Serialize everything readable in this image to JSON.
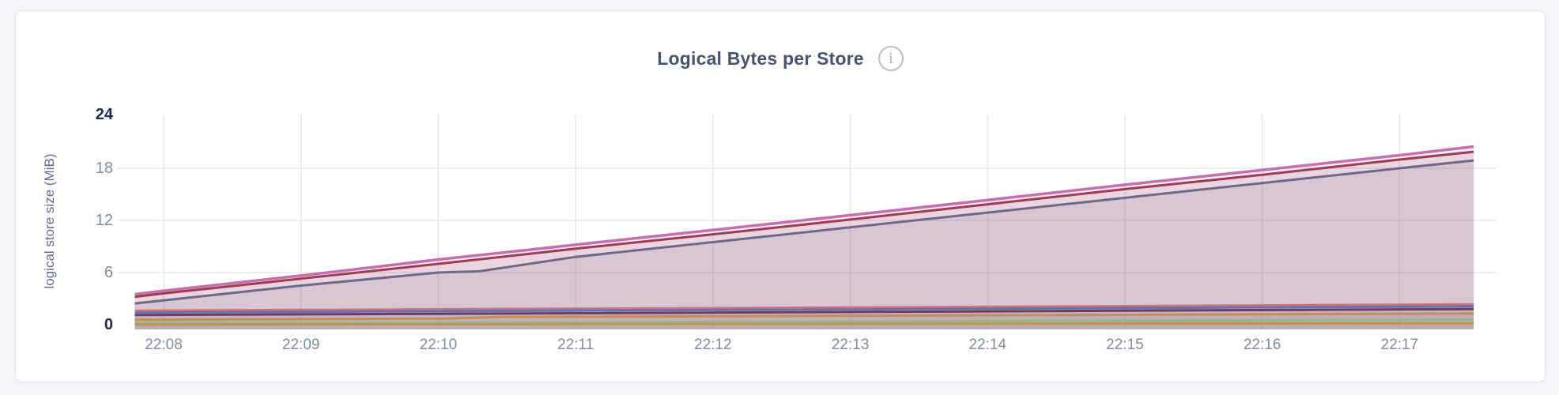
{
  "page": {
    "background": "#f3f5f9"
  },
  "header": {
    "title": "Logical Bytes per Store",
    "info_icon_glyph": "i"
  },
  "chart_data": {
    "type": "area",
    "title": "Logical Bytes per Store",
    "xlabel": "",
    "ylabel": "logical store size (MiB)",
    "ylim": [
      0,
      24
    ],
    "y_ticks": [
      0,
      6,
      12,
      18,
      24
    ],
    "y_bold_ticks": [
      0,
      24
    ],
    "x_tick_labels": [
      "22:08",
      "22:09",
      "22:10",
      "22:11",
      "22:12",
      "22:13",
      "22:14",
      "22:15",
      "22:16",
      "22:17"
    ],
    "x_tick_minutes": [
      0,
      1,
      2,
      3,
      4,
      5,
      6,
      7,
      8,
      9
    ],
    "x_domain_minutes": [
      -0.21,
      9.54
    ],
    "grid": true,
    "legend_position": "none",
    "grid_color": "#e7e8ec",
    "series": [
      {
        "name": "series-1-pink",
        "color": "#c46fae",
        "line_width": 3.5,
        "fill_opacity": 0.13,
        "points": [
          [
            -0.21,
            3.5
          ],
          [
            0,
            3.9
          ],
          [
            1,
            5.65
          ],
          [
            2,
            7.5
          ],
          [
            3,
            9.2
          ],
          [
            4,
            10.9
          ],
          [
            5,
            12.6
          ],
          [
            6,
            14.35
          ],
          [
            7,
            16.1
          ],
          [
            8,
            17.8
          ],
          [
            9,
            19.5
          ],
          [
            9.54,
            20.5
          ]
        ]
      },
      {
        "name": "series-2-crimson",
        "color": "#9e3c52",
        "line_width": 3.0,
        "fill_opacity": 0.13,
        "points": [
          [
            -0.21,
            3.2
          ],
          [
            0,
            3.6
          ],
          [
            1,
            5.3
          ],
          [
            2,
            7.0
          ],
          [
            3,
            8.75
          ],
          [
            4,
            10.4
          ],
          [
            5,
            12.1
          ],
          [
            6,
            13.85
          ],
          [
            7,
            15.6
          ],
          [
            8,
            17.25
          ],
          [
            9,
            19.0
          ],
          [
            9.54,
            19.9
          ]
        ]
      },
      {
        "name": "series-3-slate",
        "color": "#6d6987",
        "line_width": 3.0,
        "fill_opacity": 0.14,
        "points": [
          [
            -0.21,
            2.45
          ],
          [
            0,
            2.8
          ],
          [
            1,
            4.5
          ],
          [
            2,
            6.0
          ],
          [
            2.3,
            6.15
          ],
          [
            3,
            7.8
          ],
          [
            4,
            9.5
          ],
          [
            5,
            11.2
          ],
          [
            6,
            12.9
          ],
          [
            7,
            14.6
          ],
          [
            8,
            16.3
          ],
          [
            9,
            18.0
          ],
          [
            9.54,
            18.9
          ]
        ]
      },
      {
        "name": "series-4-salmon",
        "color": "#d0707a",
        "line_width": 2.8,
        "fill_opacity": 0.07,
        "points": [
          [
            -0.21,
            1.62
          ],
          [
            2,
            1.78
          ],
          [
            5,
            1.98
          ],
          [
            9.54,
            2.35
          ]
        ]
      },
      {
        "name": "series-5-blue",
        "color": "#5d74ad",
        "line_width": 2.8,
        "fill_opacity": 0.07,
        "points": [
          [
            -0.21,
            1.4
          ],
          [
            3,
            1.62
          ],
          [
            9.54,
            2.1
          ]
        ]
      },
      {
        "name": "series-6-plum",
        "color": "#713a62",
        "line_width": 3.0,
        "fill_opacity": 0.07,
        "points": [
          [
            -0.21,
            1.12
          ],
          [
            3,
            1.32
          ],
          [
            9.54,
            1.8
          ]
        ]
      },
      {
        "name": "series-7-tan",
        "color": "#bf9154",
        "line_width": 3.0,
        "fill_opacity": 0.08,
        "points": [
          [
            -0.21,
            0.55
          ],
          [
            2.05,
            0.7
          ],
          [
            2.45,
            0.88
          ],
          [
            9.54,
            1.28
          ]
        ]
      },
      {
        "name": "series-8-green",
        "color": "#8cba8b",
        "line_width": 3.0,
        "fill_opacity": 0.08,
        "points": [
          [
            -0.21,
            0.15
          ],
          [
            4,
            0.32
          ],
          [
            9.54,
            0.58
          ]
        ]
      },
      {
        "name": "series-9-tan",
        "color": "#bf9154",
        "line_width": 3.0,
        "fill_opacity": 0.08,
        "points": [
          [
            -0.21,
            0.02
          ],
          [
            9.54,
            0.16
          ]
        ]
      }
    ]
  }
}
